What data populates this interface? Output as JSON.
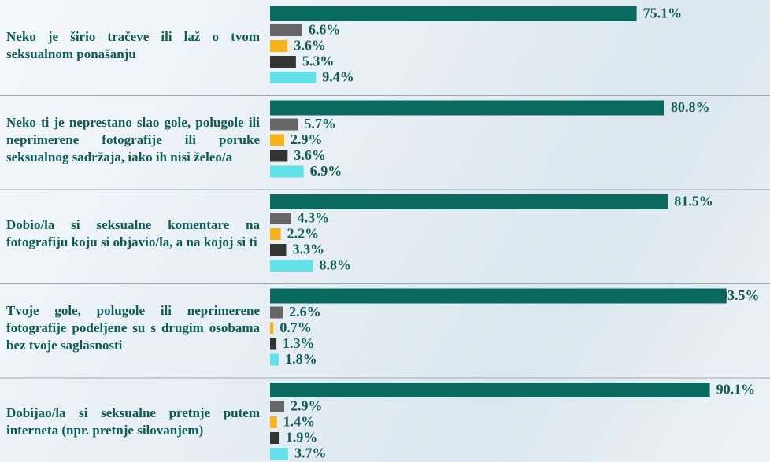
{
  "chart_data": {
    "type": "bar",
    "orientation": "horizontal",
    "categories": [
      "Neko je širio tračeve ili laž o tvom seksualnom ponašanju",
      "Neko ti je neprestano slao gole, polugole ili neprimerene fotografije ili poruke seksualnog sadržaja, iako ih nisi želeo/a",
      "Dobio/la si seksualne komentare na fotografiju koju si objavio/la, a na kojoj si ti",
      "Tvoje gole, polugole ili neprimerene fotografije podeljene su s drugim osobama bez tvoje saglasnosti",
      "Dobijao/la si seksualne pretnje putem interneta (npr. pretnje silovanjem)"
    ],
    "series": [
      {
        "color": "#0b6a60",
        "values": [
          75.1,
          80.8,
          81.5,
          93.5,
          90.1
        ],
        "value_labels": [
          "75.1%",
          "80.8%",
          "81.5%",
          "93.5%",
          "90.1%"
        ]
      },
      {
        "color": "#666666",
        "values": [
          6.6,
          5.7,
          4.3,
          2.6,
          2.9
        ],
        "value_labels": [
          "6.6%",
          "5.7%",
          "4.3%",
          "2.6%",
          "2.9%"
        ]
      },
      {
        "color": "#f6b21b",
        "values": [
          3.6,
          2.9,
          2.2,
          0.7,
          1.4
        ],
        "value_labels": [
          "3.6%",
          "2.9%",
          "2.2%",
          "0.7%",
          "1.4%"
        ]
      },
      {
        "color": "#333333",
        "values": [
          5.3,
          3.6,
          3.3,
          1.3,
          1.9
        ],
        "value_labels": [
          "5.3%",
          "3.6%",
          "3.3%",
          "1.3%",
          "1.9%"
        ]
      },
      {
        "color": "#62e2e8",
        "values": [
          9.4,
          6.9,
          8.8,
          1.8,
          3.7
        ],
        "value_labels": [
          "9.4%",
          "6.9%",
          "8.8%",
          "1.8%",
          "3.7%"
        ]
      }
    ],
    "xlim": [
      0,
      100
    ]
  }
}
